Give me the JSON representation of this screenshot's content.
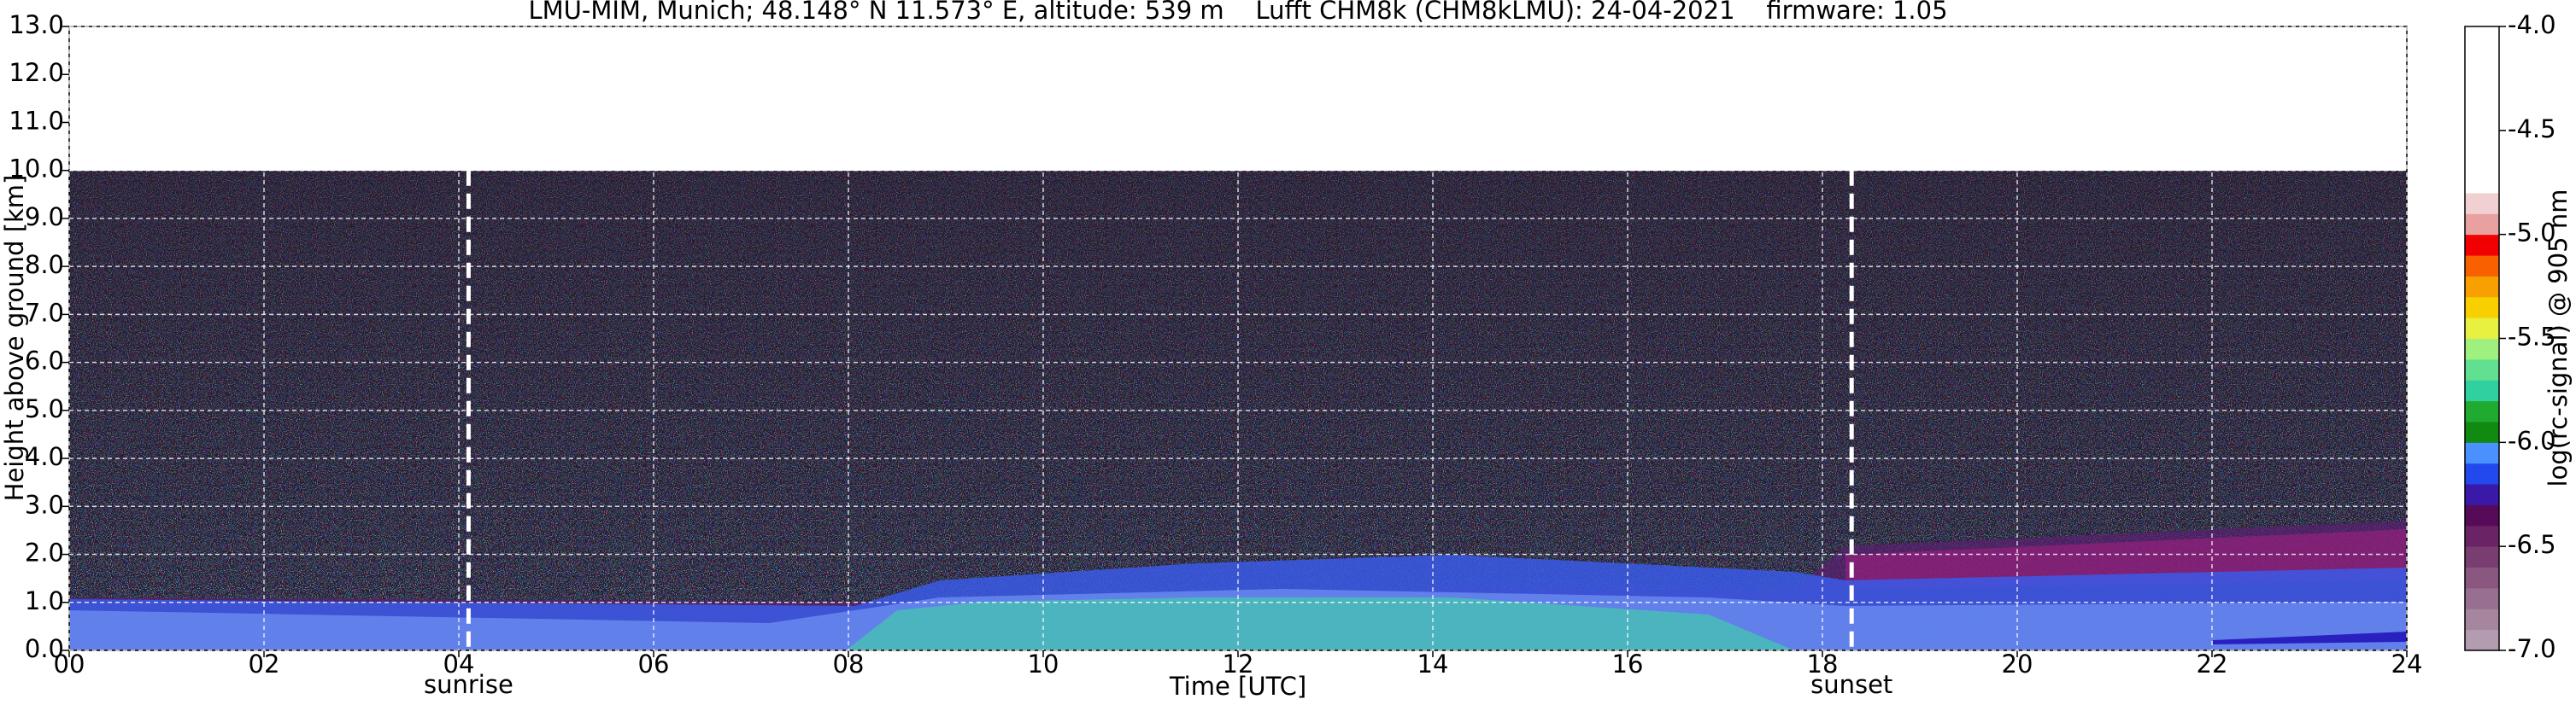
{
  "chart_data": {
    "type": "heatmap",
    "title": "LMU-MIM, Munich; 48.148° N 11.573° E, altitude: 539 m    Lufft CHM8k (CHM8kLMU): 24-04-2021    firmware: 1.05",
    "x_label": "Time [UTC]",
    "y_label": "Height above ground [km]",
    "xlim": [
      0,
      24
    ],
    "xticks": [
      {
        "value": 0,
        "label": "00"
      },
      {
        "value": 2,
        "label": "02"
      },
      {
        "value": 4,
        "label": "04"
      },
      {
        "value": 6,
        "label": "06"
      },
      {
        "value": 8,
        "label": "08"
      },
      10,
      12,
      14,
      16,
      18,
      20,
      22,
      24
    ],
    "ylim": [
      0,
      13
    ],
    "yticks": [
      {
        "value": 0,
        "label": "0.0"
      },
      {
        "value": 1,
        "label": "1.0"
      },
      {
        "value": 2,
        "label": "2.0"
      },
      {
        "value": 3,
        "label": "3.0"
      },
      {
        "value": 4,
        "label": "4.0"
      },
      {
        "value": 5,
        "label": "5.0"
      },
      {
        "value": 6,
        "label": "6.0"
      },
      {
        "value": 7,
        "label": "7.0"
      },
      {
        "value": 8,
        "label": "8.0"
      },
      {
        "value": 9,
        "label": "9.0"
      },
      {
        "value": 10,
        "label": "10.0"
      },
      {
        "value": 11,
        "label": "11.0"
      },
      {
        "value": 12,
        "label": "12.0"
      },
      {
        "value": 13,
        "label": "13.0"
      }
    ],
    "grid": true,
    "annotations": [
      {
        "label": "sunrise",
        "x": 4.1
      },
      {
        "label": "sunset",
        "x": 18.3
      }
    ],
    "colorbar": {
      "label": "log(rc-signal) @ 905 nm",
      "lim": [
        -7,
        -4
      ],
      "ticks": [
        {
          "value": -4,
          "label": "-4.0"
        },
        -4.5,
        {
          "value": -5,
          "label": "-5.0"
        },
        -5.5,
        {
          "value": -6,
          "label": "-6.0"
        },
        -6.5,
        {
          "value": -7,
          "label": "-7.0"
        }
      ],
      "colors": [
        "#b39bb0",
        "#a6859f",
        "#986f90",
        "#8a5780",
        "#7a3d72",
        "#6a2364",
        "#560a58",
        "#3a18a8",
        "#2248ee",
        "#4a90ff",
        "#108a10",
        "#20aa30",
        "#30d0a0",
        "#60e090",
        "#a0f080",
        "#e8f040",
        "#f8d000",
        "#f8a000",
        "#f86000",
        "#f00000",
        "#e8a0a0",
        "#f0d0d0",
        "#ffffff",
        "#ffffff",
        "#ffffff",
        "#ffffff",
        "#ffffff",
        "#ffffff",
        "#ffffff",
        "#ffffff"
      ]
    }
  }
}
